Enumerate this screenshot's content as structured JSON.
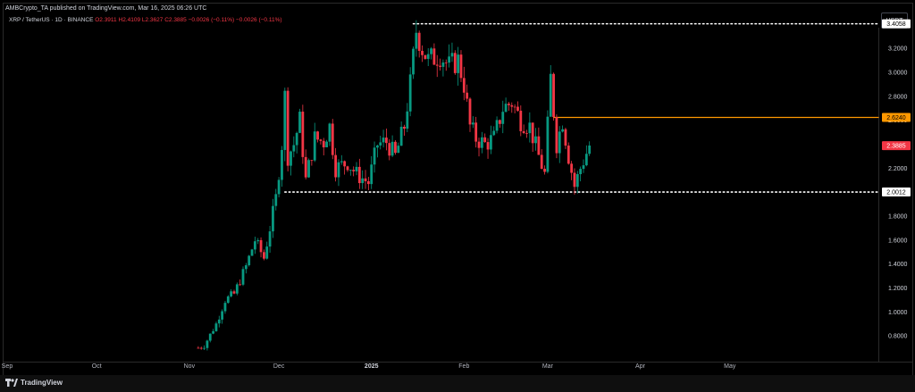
{
  "header": {
    "publish_line": "AMBCrypto_TA published on TradingView.com, Mar 16, 2025 06:26 UTC",
    "symbol": "XRP / TetherUS · 1D · BINANCE",
    "open": "O2.3911",
    "high": "H2.4109",
    "low": "L2.3627",
    "close": "C2.3885",
    "change": "−0.0026 (−0.11%)",
    "change2": "−0.0026 (−0.11%)",
    "currency": "USDT"
  },
  "footer": {
    "brand": "TradingView"
  },
  "colors": {
    "up": "#089981",
    "down": "#f23645",
    "resistance": "#ff9800",
    "current_price_tag": "#f23645",
    "background": "#000000"
  },
  "chart_data": {
    "type": "candlestick",
    "y_ticks": [
      "3.2000",
      "3.0000",
      "2.8000",
      "2.6000",
      "2.4000",
      "2.2000",
      "2.0000",
      "1.8000",
      "1.6000",
      "1.4000",
      "1.2000",
      "1.0000",
      "0.8000"
    ],
    "y_tick_values": [
      3.2,
      3.0,
      2.8,
      2.6,
      2.4,
      2.2,
      2.0,
      1.8,
      1.6,
      1.4,
      1.2,
      1.0,
      0.8
    ],
    "ylim": [
      0.6,
      3.5
    ],
    "x_ticks": [
      {
        "label": "Sep",
        "date": "2024-09-01",
        "bold": false
      },
      {
        "label": "Oct",
        "date": "2024-10-01",
        "bold": false
      },
      {
        "label": "Nov",
        "date": "2024-11-01",
        "bold": false
      },
      {
        "label": "Dec",
        "date": "2024-12-01",
        "bold": false
      },
      {
        "label": "2025",
        "date": "2025-01-01",
        "bold": true
      },
      {
        "label": "Feb",
        "date": "2025-02-01",
        "bold": false
      },
      {
        "label": "Mar",
        "date": "2025-03-01",
        "bold": false
      },
      {
        "label": "Apr",
        "date": "2025-04-01",
        "bold": false
      },
      {
        "label": "May",
        "date": "2025-05-01",
        "bold": false
      }
    ],
    "xlim": [
      "2024-09-01",
      "2025-05-31"
    ],
    "levels": [
      {
        "label": "3.4058",
        "value": 3.4058,
        "style": "dotted",
        "color": "#ffffff",
        "from": "2025-01-15"
      },
      {
        "label": "2.6240",
        "value": 2.624,
        "style": "solid",
        "color": "#ff9800",
        "from": "2025-03-03"
      },
      {
        "label": "2.0012",
        "value": 2.0012,
        "style": "dotted",
        "color": "#ffffff",
        "from": "2024-12-03"
      }
    ],
    "current_price": {
      "label": "2.3885",
      "value": 2.3885
    },
    "candle_anchors": [
      [
        "2024-11-04",
        0.7
      ],
      [
        "2024-11-06",
        0.72
      ],
      [
        "2024-11-10",
        0.9
      ],
      [
        "2024-11-13",
        1.1
      ],
      [
        "2024-11-16",
        1.15
      ],
      [
        "2024-11-20",
        1.38
      ],
      [
        "2024-11-23",
        1.6
      ],
      [
        "2024-11-26",
        1.45
      ],
      [
        "2024-11-30",
        1.95
      ],
      [
        "2024-12-02",
        2.4
      ],
      [
        "2024-12-03",
        2.8
      ],
      [
        "2024-12-04",
        2.3
      ],
      [
        "2024-12-06",
        2.4
      ],
      [
        "2024-12-08",
        2.6
      ],
      [
        "2024-12-10",
        2.1
      ],
      [
        "2024-12-13",
        2.45
      ],
      [
        "2024-12-16",
        2.42
      ],
      [
        "2024-12-18",
        2.55
      ],
      [
        "2024-12-20",
        2.2
      ],
      [
        "2024-12-24",
        2.25
      ],
      [
        "2024-12-27",
        2.15
      ],
      [
        "2024-12-31",
        2.08
      ],
      [
        "2025-01-03",
        2.4
      ],
      [
        "2025-01-06",
        2.42
      ],
      [
        "2025-01-09",
        2.3
      ],
      [
        "2025-01-12",
        2.55
      ],
      [
        "2025-01-14",
        2.9
      ],
      [
        "2025-01-16",
        3.35
      ],
      [
        "2025-01-18",
        3.2
      ],
      [
        "2025-01-20",
        3.1
      ],
      [
        "2025-01-24",
        3.15
      ],
      [
        "2025-01-27",
        3.05
      ],
      [
        "2025-01-30",
        3.1
      ],
      [
        "2025-02-01",
        2.9
      ],
      [
        "2025-02-03",
        2.55
      ],
      [
        "2025-02-05",
        2.45
      ],
      [
        "2025-02-08",
        2.4
      ],
      [
        "2025-02-11",
        2.45
      ],
      [
        "2025-02-14",
        2.7
      ],
      [
        "2025-02-17",
        2.75
      ],
      [
        "2025-02-20",
        2.6
      ],
      [
        "2025-02-23",
        2.55
      ],
      [
        "2025-02-26",
        2.3
      ],
      [
        "2025-02-28",
        2.15
      ],
      [
        "2025-03-02",
        2.95
      ],
      [
        "2025-03-04",
        2.4
      ],
      [
        "2025-03-06",
        2.6
      ],
      [
        "2025-03-08",
        2.3
      ],
      [
        "2025-03-10",
        2.05
      ],
      [
        "2025-03-12",
        2.2
      ],
      [
        "2025-03-15",
        2.39
      ]
    ]
  }
}
